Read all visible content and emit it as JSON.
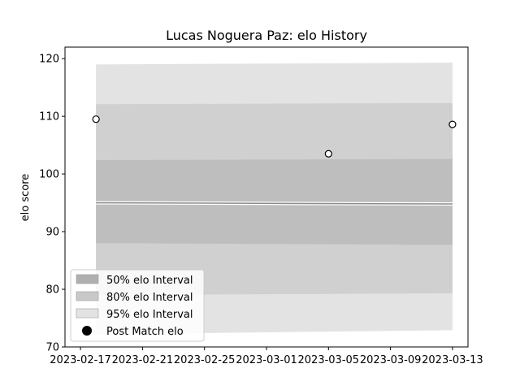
{
  "chart_data": {
    "type": "area",
    "title": "Lucas Noguera Paz: elo History",
    "xlabel": "",
    "ylabel": "elo score",
    "x_range": [
      "2023-02-16",
      "2023-03-14"
    ],
    "ylim": [
      70,
      122
    ],
    "x_ticks": [
      "2023-02-17",
      "2023-02-21",
      "2023-02-25",
      "2023-03-01",
      "2023-03-05",
      "2023-03-09",
      "2023-03-13"
    ],
    "y_ticks": [
      70,
      80,
      90,
      100,
      110,
      120
    ],
    "grid": false,
    "legend_position": "lower-left",
    "x": [
      "2023-02-18",
      "2023-03-13"
    ],
    "mean": [
      95.0,
      94.8
    ],
    "bands": [
      {
        "name": "95% elo Interval",
        "color": "#e3e3e3",
        "lower": [
          72.2,
          72.9
        ],
        "upper": [
          119.0,
          119.3
        ]
      },
      {
        "name": "80% elo Interval",
        "color": "#d0d0d0",
        "lower": [
          79.0,
          79.3
        ],
        "upper": [
          112.1,
          112.3
        ]
      },
      {
        "name": "50% elo Interval",
        "color": "#bebebe",
        "lower": [
          88.0,
          87.7
        ],
        "upper": [
          102.4,
          102.6
        ]
      }
    ],
    "points": {
      "name": "Post Match elo",
      "x": [
        "2023-02-18",
        "2023-03-05",
        "2023-03-13"
      ],
      "y": [
        109.5,
        103.5,
        108.6
      ]
    },
    "legend": [
      {
        "label": "50% elo Interval",
        "kind": "patch",
        "color": "#b0b0b0"
      },
      {
        "label": "80% elo Interval",
        "kind": "patch",
        "color": "#c8c8c8"
      },
      {
        "label": "95% elo Interval",
        "kind": "patch",
        "color": "#e3e3e3"
      },
      {
        "label": "Post Match elo",
        "kind": "marker",
        "color": "#000000"
      }
    ]
  }
}
